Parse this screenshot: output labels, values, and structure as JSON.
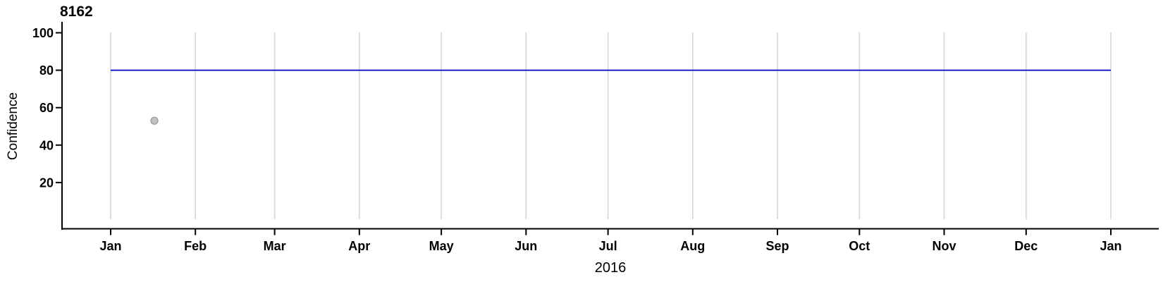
{
  "title": "8162",
  "colors": {
    "threshold_line": "#0000d0",
    "point_fill": "#c3c3c3",
    "point_stroke": "#9c9c9c",
    "grid": "#d9d9d9",
    "axis": "#000000",
    "text": "#000000",
    "background": "#ffffff"
  },
  "chart_data": {
    "type": "scatter",
    "title": "8162",
    "xlabel": "2016",
    "ylabel": "Confidence",
    "legend": "none",
    "x_axis": {
      "unit": "days from Jan 1 2016",
      "range_days": [
        0,
        366
      ],
      "tick_labels": [
        "Jan",
        "Feb",
        "Mar",
        "Apr",
        "May",
        "Jun",
        "Jul",
        "Aug",
        "Sep",
        "Oct",
        "Nov",
        "Dec",
        "Jan"
      ],
      "tick_positions_days": [
        0,
        31,
        60,
        91,
        121,
        152,
        182,
        213,
        244,
        274,
        305,
        335,
        366
      ],
      "grid": "vertical gridlines at each month start"
    },
    "y_axis": {
      "range": [
        0,
        100
      ],
      "ticks": [
        20,
        40,
        60,
        80,
        100
      ],
      "grid": false
    },
    "series": [
      {
        "name": "confidence-point",
        "type": "scatter",
        "points": [
          {
            "x_day": 16,
            "y": 53
          }
        ]
      },
      {
        "name": "threshold-line",
        "type": "line",
        "y": 80,
        "x_start_day": 0,
        "x_end_day": 366
      }
    ]
  }
}
